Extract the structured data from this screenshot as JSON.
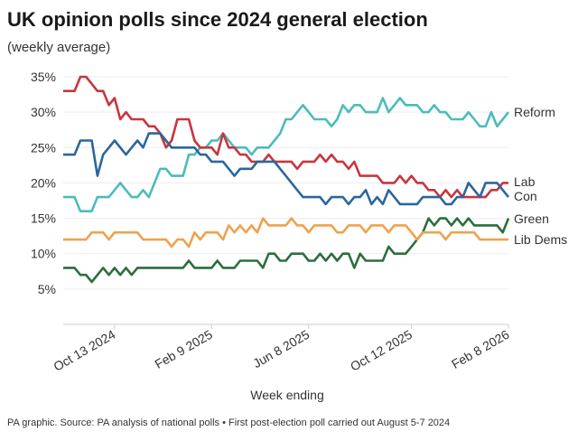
{
  "chart_data": {
    "type": "line",
    "title": "UK opinion polls since 2024 general election",
    "subtitle": "(weekly average)",
    "xlabel": "Week ending",
    "ylabel": "",
    "ylim": [
      0,
      35
    ],
    "y_ticks": [
      "5%",
      "10%",
      "15%",
      "20%",
      "25%",
      "30%",
      "35%"
    ],
    "y_tick_values": [
      5,
      10,
      15,
      20,
      25,
      30,
      35
    ],
    "x_ticks": [
      {
        "label": "Oct 13 2024",
        "date": "2024-10-13"
      },
      {
        "label": "Feb 9 2025",
        "date": "2025-02-09"
      },
      {
        "label": "Jun 8 2025",
        "date": "2025-06-08"
      },
      {
        "label": "Oct 12 2025",
        "date": "2025-10-12"
      },
      {
        "label": "Feb 8 2026",
        "date": "2026-02-08"
      }
    ],
    "grid": "horizontal",
    "legend": "direct labels at right end of lines",
    "x": [
      "2024-08-11",
      "2024-08-18",
      "2024-08-25",
      "2024-09-01",
      "2024-09-08",
      "2024-09-15",
      "2024-09-22",
      "2024-09-29",
      "2024-10-06",
      "2024-10-13",
      "2024-10-20",
      "2024-10-27",
      "2024-11-03",
      "2024-11-10",
      "2024-11-17",
      "2024-11-24",
      "2024-12-01",
      "2024-12-08",
      "2024-12-15",
      "2024-12-22",
      "2024-12-29",
      "2025-01-05",
      "2025-01-12",
      "2025-01-19",
      "2025-01-26",
      "2025-02-02",
      "2025-02-09",
      "2025-02-16",
      "2025-02-23",
      "2025-03-02",
      "2025-03-09",
      "2025-03-16",
      "2025-03-23",
      "2025-03-30",
      "2025-04-06",
      "2025-04-13",
      "2025-04-20",
      "2025-04-27",
      "2025-05-04",
      "2025-05-11",
      "2025-05-18",
      "2025-05-25",
      "2025-06-01",
      "2025-06-08",
      "2025-06-15",
      "2025-06-22",
      "2025-06-29",
      "2025-07-06",
      "2025-07-13",
      "2025-07-20",
      "2025-07-27",
      "2025-08-03",
      "2025-08-10",
      "2025-08-17",
      "2025-08-24",
      "2025-08-31",
      "2025-09-07",
      "2025-09-14",
      "2025-09-21",
      "2025-09-28",
      "2025-10-05",
      "2025-10-12",
      "2025-10-19",
      "2025-10-26",
      "2025-11-02",
      "2025-11-09",
      "2025-11-16",
      "2025-11-23",
      "2025-11-30",
      "2025-12-07",
      "2025-12-14",
      "2025-12-21",
      "2025-12-28",
      "2026-01-04",
      "2026-01-11",
      "2026-01-18",
      "2026-01-25",
      "2026-02-01",
      "2026-02-08"
    ],
    "series": [
      {
        "name": "Reform",
        "color": "#4cbcbb",
        "values": [
          18,
          18,
          18,
          16,
          16,
          16,
          18,
          18,
          18,
          19,
          20,
          19,
          18,
          18,
          19,
          18,
          20,
          22,
          22,
          21,
          21,
          21,
          24,
          24,
          25,
          25,
          26,
          26,
          27,
          26,
          25,
          25,
          25,
          24,
          25,
          25,
          25,
          26,
          27,
          29,
          29,
          30,
          31,
          30,
          29,
          29,
          29,
          28,
          29,
          31,
          30,
          31,
          31,
          30,
          30,
          30,
          32,
          30,
          31,
          32,
          31,
          31,
          31,
          30,
          30,
          31,
          30,
          30,
          29,
          29,
          29,
          30,
          29,
          28,
          28,
          30,
          28,
          29,
          30
        ]
      },
      {
        "name": "Lab",
        "color": "#c8363f",
        "values": [
          33,
          33,
          33,
          35,
          35,
          34,
          33,
          33,
          31,
          32,
          29,
          30,
          29,
          29,
          29,
          28,
          28,
          27,
          25,
          26,
          29,
          29,
          29,
          26,
          25,
          25,
          25,
          24,
          27,
          25,
          25,
          24,
          24,
          23,
          23,
          23,
          24,
          23,
          23,
          23,
          23,
          22,
          23,
          23,
          23,
          24,
          23,
          24,
          23,
          23,
          22,
          23,
          21,
          21,
          21,
          21,
          20,
          20,
          20,
          21,
          20,
          21,
          20,
          20,
          19,
          19,
          18,
          19,
          18,
          19,
          18,
          18,
          18,
          18,
          18,
          19,
          19,
          20,
          20
        ]
      },
      {
        "name": "Con",
        "color": "#2a679c",
        "values": [
          24,
          24,
          24,
          26,
          26,
          26,
          21,
          24,
          25,
          26,
          25,
          24,
          25,
          26,
          25,
          27,
          27,
          27,
          26,
          25,
          25,
          25,
          25,
          25,
          24,
          24,
          23,
          23,
          23,
          22,
          21,
          22,
          22,
          22,
          23,
          23,
          23,
          23,
          22,
          21,
          20,
          19,
          18,
          18,
          18,
          18,
          17,
          18,
          18,
          18,
          17,
          18,
          18,
          19,
          17,
          18,
          17,
          19,
          18,
          17,
          17,
          17,
          17,
          18,
          18,
          18,
          18,
          17,
          17,
          18,
          18,
          20,
          19,
          18,
          20,
          20,
          20,
          19,
          18
        ]
      },
      {
        "name": "Green",
        "color": "#2d6e3e",
        "values": [
          8,
          8,
          8,
          7,
          7,
          6,
          7,
          8,
          7,
          8,
          7,
          8,
          7,
          8,
          8,
          8,
          8,
          8,
          8,
          8,
          8,
          8,
          9,
          8,
          8,
          8,
          8,
          9,
          8,
          8,
          8,
          9,
          9,
          9,
          9,
          8,
          10,
          10,
          9,
          9,
          10,
          10,
          10,
          9,
          9,
          10,
          9,
          10,
          9,
          10,
          10,
          8,
          10,
          9,
          9,
          9,
          9,
          11,
          10,
          10,
          10,
          11,
          12,
          13,
          15,
          14,
          15,
          15,
          14,
          15,
          14,
          15,
          14,
          14,
          14,
          14,
          14,
          13,
          15
        ]
      },
      {
        "name": "Lib Dems",
        "color": "#eea24e",
        "values": [
          12,
          12,
          12,
          12,
          12,
          13,
          13,
          13,
          12,
          13,
          13,
          13,
          13,
          13,
          12,
          12,
          12,
          12,
          12,
          11,
          12,
          12,
          11,
          13,
          12,
          13,
          13,
          13,
          12,
          14,
          13,
          14,
          13,
          14,
          13,
          15,
          14,
          14,
          14,
          14,
          15,
          14,
          14,
          13,
          14,
          14,
          14,
          14,
          13,
          13,
          14,
          14,
          14,
          13,
          14,
          14,
          14,
          13,
          14,
          14,
          14,
          13,
          12,
          13,
          13,
          13,
          13,
          12,
          13,
          13,
          13,
          13,
          13,
          12,
          12,
          12,
          12,
          12,
          12
        ]
      }
    ]
  },
  "footer": "PA graphic. Source: PA analysis of national polls • First post-election poll carried out August 5-7 2024"
}
